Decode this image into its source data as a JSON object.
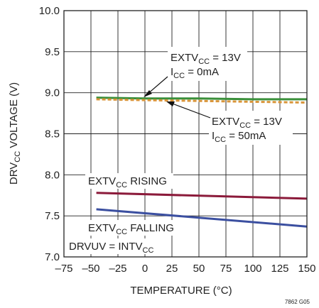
{
  "figure_id": "7862 G05",
  "chart_data": {
    "type": "line",
    "xlabel": "TEMPERATURE (°C)",
    "ylabel": {
      "main": "DRV",
      "sub": "CC",
      "rest": " VOLTAGE (V)"
    },
    "xlim": [
      -75,
      150
    ],
    "ylim": [
      7.0,
      10.0
    ],
    "x_ticks": [
      "–75",
      "–50",
      "–25",
      "0",
      "25",
      "50",
      "75",
      "100",
      "125",
      "150"
    ],
    "y_ticks": [
      "7.0",
      "7.5",
      "8.0",
      "8.5",
      "9.0",
      "9.5",
      "10.0"
    ],
    "grid": true,
    "series": [
      {
        "id": "icc0",
        "color": "#3a8f3a",
        "dash": "",
        "x": [
          -45,
          0,
          50,
          100,
          150
        ],
        "y": [
          8.94,
          8.93,
          8.93,
          8.92,
          8.92
        ]
      },
      {
        "id": "icc50",
        "color": "#d9953a",
        "dash": "5,3",
        "x": [
          -45,
          0,
          50,
          100,
          150
        ],
        "y": [
          8.92,
          8.91,
          8.9,
          8.89,
          8.88
        ]
      },
      {
        "id": "rising",
        "color": "#8b1a3a",
        "dash": "",
        "x": [
          -45,
          150
        ],
        "y": [
          7.78,
          7.71
        ]
      },
      {
        "id": "falling",
        "color": "#3b4fa0",
        "dash": "",
        "x": [
          -45,
          150
        ],
        "y": [
          7.58,
          7.37
        ]
      }
    ],
    "annotations": {
      "a1": {
        "l1_main": "EXTV",
        "l1_sub": "CC",
        "l1_rest": " = 13V",
        "l2_main": "I",
        "l2_sub": "CC",
        "l2_rest": " = 0mA"
      },
      "a2": {
        "l1_main": "EXTV",
        "l1_sub": "CC",
        "l1_rest": " = 13V",
        "l2_main": "I",
        "l2_sub": "CC",
        "l2_rest": " = 50mA"
      },
      "rising": {
        "main": "EXTV",
        "sub": "CC",
        "rest": " RISING"
      },
      "falling": {
        "main": "EXTV",
        "sub": "CC",
        "rest": " FALLING"
      },
      "drvuv": {
        "main": "DRVUV = INTV",
        "sub": "CC"
      }
    }
  }
}
